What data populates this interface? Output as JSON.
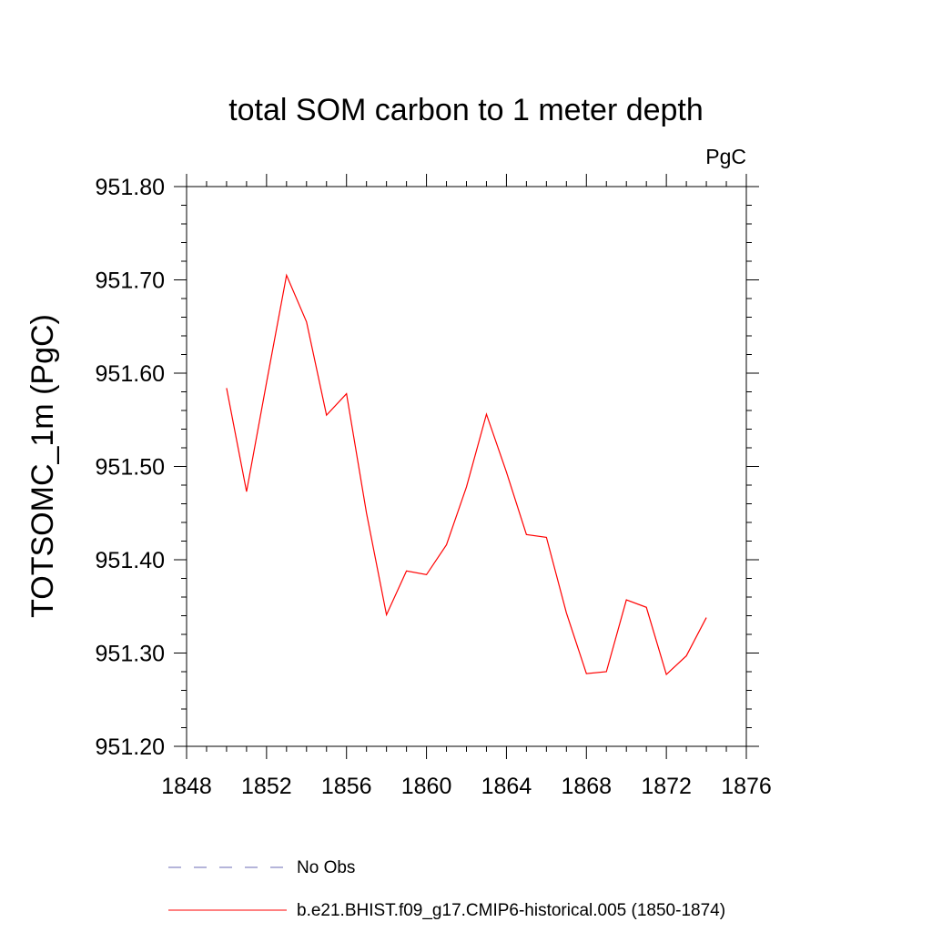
{
  "chart_data": {
    "type": "line",
    "title": "total SOM carbon to 1 meter depth",
    "units_label": "PgC",
    "ylabel": "TOTSOMC_1m  (PgC)",
    "xlabel": "",
    "xlim": [
      1848,
      1876
    ],
    "ylim": [
      951.2,
      951.8
    ],
    "x_ticks": [
      1848,
      1852,
      1856,
      1860,
      1864,
      1868,
      1872,
      1876
    ],
    "x_tick_labels": [
      "1848",
      "1852",
      "1856",
      "1860",
      "1864",
      "1868",
      "1872",
      "1876"
    ],
    "y_ticks": [
      951.2,
      951.3,
      951.4,
      951.5,
      951.6,
      951.7,
      951.8
    ],
    "y_tick_labels": [
      "951.20",
      "951.30",
      "951.40",
      "951.50",
      "951.60",
      "951.70",
      "951.80"
    ],
    "grid": false,
    "series": [
      {
        "name": "b.e21.BHIST.f09_g17.CMIP6-historical.005 (1850-1874)",
        "color": "#ff0000",
        "x": [
          1850,
          1851,
          1852,
          1853,
          1854,
          1855,
          1856,
          1857,
          1858,
          1859,
          1860,
          1861,
          1862,
          1863,
          1864,
          1865,
          1866,
          1867,
          1868,
          1869,
          1870,
          1871,
          1872,
          1873,
          1874
        ],
        "values": [
          951.584,
          951.473,
          951.59,
          951.705,
          951.655,
          951.555,
          951.578,
          951.45,
          951.341,
          951.388,
          951.384,
          951.416,
          951.478,
          951.556,
          951.494,
          951.427,
          951.424,
          951.343,
          951.278,
          951.28,
          951.357,
          951.349,
          951.277,
          951.297,
          951.338
        ]
      }
    ],
    "legend": [
      {
        "label": "No Obs",
        "style": "dashed",
        "color": "#6b6bb4"
      },
      {
        "label": "b.e21.BHIST.f09_g17.CMIP6-historical.005 (1850-1874)",
        "style": "solid",
        "color": "#ff0000"
      }
    ]
  }
}
